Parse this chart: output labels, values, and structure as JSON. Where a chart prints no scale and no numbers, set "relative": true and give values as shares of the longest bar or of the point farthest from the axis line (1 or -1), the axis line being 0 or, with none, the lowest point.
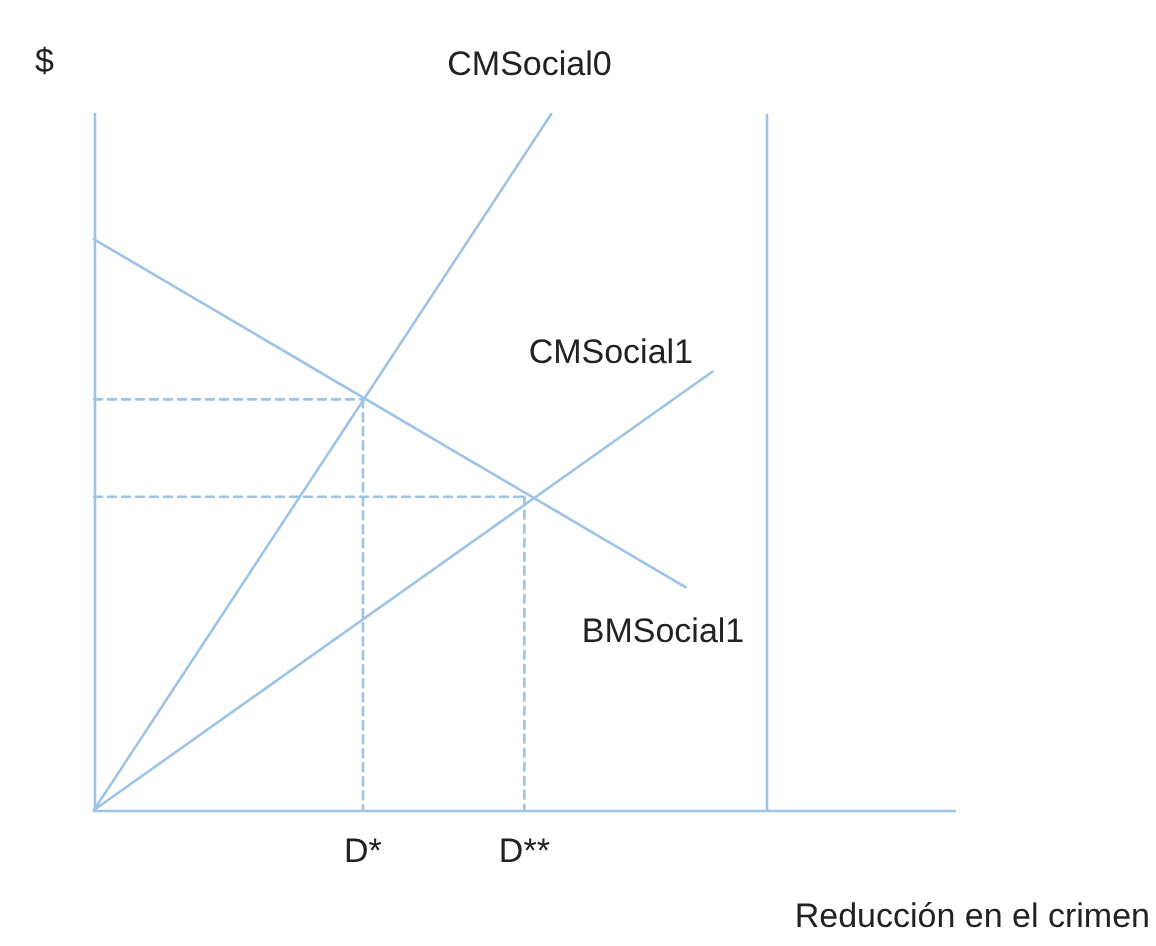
{
  "chart_data": {
    "type": "line",
    "relative": true,
    "ylabel": "$",
    "xlabel": "Reducción en el crimen",
    "categories": [
      null,
      null,
      null,
      null,
      null,
      null,
      null,
      null,
      null,
      null,
      "D*",
      null,
      null,
      null,
      null,
      null,
      "D**",
      null,
      null,
      null,
      null,
      null,
      null,
      null,
      null,
      null,
      null,
      null,
      null,
      null,
      null,
      null,
      null
    ],
    "grid": false,
    "legend": false,
    "marker": "none",
    "series": [
      {
        "name": "CMSocial0",
        "color": "#9dc3e6",
        "values": [
          0,
          null,
          null,
          null,
          null,
          null,
          null,
          null,
          null,
          null,
          null,
          null,
          null,
          null,
          null,
          null,
          null,
          1,
          null,
          null,
          null,
          null,
          null,
          null,
          null,
          null,
          null,
          null,
          null,
          null,
          null,
          null,
          null
        ]
      },
      {
        "name": "CMSocial1",
        "color": "#9dc3e6",
        "values": [
          0,
          null,
          null,
          null,
          null,
          null,
          null,
          null,
          null,
          null,
          null,
          null,
          null,
          null,
          null,
          null,
          null,
          null,
          null,
          null,
          null,
          null,
          null,
          0.63,
          null,
          null,
          null,
          null,
          null,
          null,
          null,
          null,
          null
        ]
      },
      {
        "name": "BMSocial1",
        "color": "#9dc3e6",
        "values": [
          0.82,
          null,
          null,
          null,
          null,
          null,
          null,
          null,
          null,
          null,
          null,
          null,
          null,
          null,
          null,
          null,
          null,
          null,
          null,
          null,
          null,
          null,
          0.32,
          null,
          null,
          null,
          null,
          null,
          null,
          null,
          null,
          null,
          null
        ]
      },
      {
        "color": "#9dc3e6",
        "line_style": "dashed",
        "values": [
          0.59,
          null,
          null,
          null,
          null,
          null,
          null,
          null,
          null,
          null,
          0.59,
          null,
          null,
          null,
          null,
          null,
          null,
          null,
          null,
          null,
          null,
          null,
          null,
          null,
          null,
          null,
          null,
          null,
          null,
          null,
          null,
          null,
          null
        ]
      },
      {
        "color": "#9dc3e6",
        "line_style": "dashed",
        "values": [
          0.45,
          null,
          null,
          null,
          null,
          null,
          null,
          null,
          null,
          null,
          null,
          null,
          null,
          null,
          null,
          null,
          0.45,
          null,
          null,
          null,
          null,
          null,
          null,
          null,
          null,
          null,
          null,
          null,
          null,
          null,
          null,
          null,
          null
        ]
      },
      {
        "color": "#9dc3e6",
        "line_style": "dashed",
        "x": [
          "D*",
          "D*"
        ],
        "values": [
          0.59,
          0
        ]
      },
      {
        "color": "#9dc3e6",
        "line_style": "dashed",
        "x": [
          "D**",
          "D**"
        ],
        "values": [
          0.45,
          0
        ]
      }
    ]
  }
}
